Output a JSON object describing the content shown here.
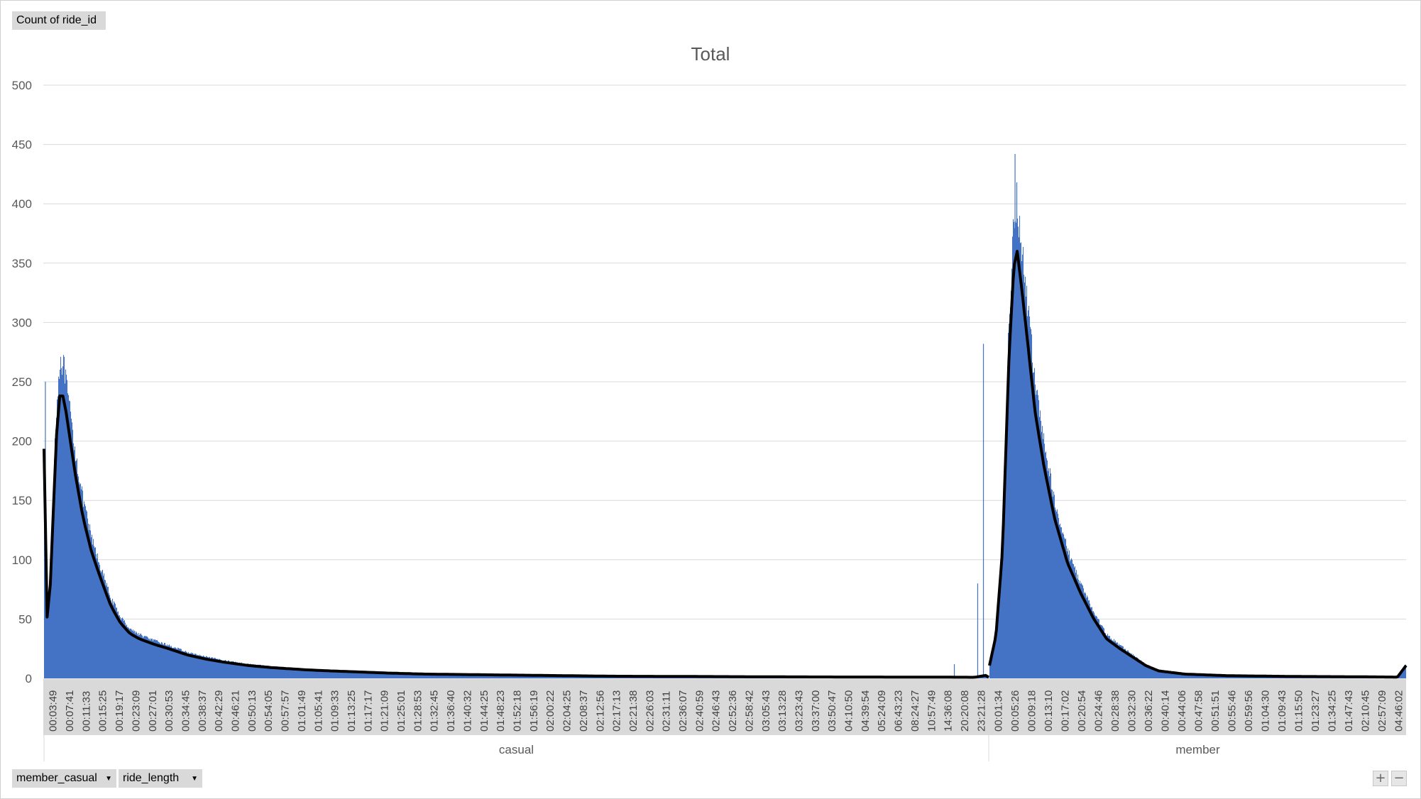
{
  "value_field_button": {
    "label": "Count of ride_id"
  },
  "axis_field_buttons": [
    {
      "label": "member_casual"
    },
    {
      "label": "ride_length"
    }
  ],
  "zoom": {
    "plus": "+",
    "minus": "−"
  },
  "colors": {
    "bars": "#4472c4",
    "trendline": "#000000",
    "grid": "#d9d9d9",
    "axis_band": "#d9d9d9",
    "text": "#595959"
  },
  "chart_data": {
    "type": "bar",
    "title": "Total",
    "xlabel": "",
    "ylabel": "",
    "ylim": [
      0,
      500
    ],
    "yticks": [
      0,
      50,
      100,
      150,
      200,
      250,
      300,
      350,
      400,
      450,
      500
    ],
    "grid": true,
    "legend": "none",
    "trendline": "moving average (black line)",
    "groups": [
      {
        "name": "casual",
        "tick_labels": [
          "00:03:49",
          "00:07:41",
          "00:11:33",
          "00:15:25",
          "00:19:17",
          "00:23:09",
          "00:27:01",
          "00:30:53",
          "00:34:45",
          "00:38:37",
          "00:42:29",
          "00:46:21",
          "00:50:13",
          "00:54:05",
          "00:57:57",
          "01:01:49",
          "01:05:41",
          "01:09:33",
          "01:13:25",
          "01:17:17",
          "01:21:09",
          "01:25:01",
          "01:28:53",
          "01:32:45",
          "01:36:40",
          "01:40:32",
          "01:44:25",
          "01:48:23",
          "01:52:18",
          "01:56:19",
          "02:00:22",
          "02:04:25",
          "02:08:37",
          "02:12:56",
          "02:17:13",
          "02:21:38",
          "02:26:03",
          "02:31:11",
          "02:36:07",
          "02:40:59",
          "02:46:43",
          "02:52:36",
          "02:58:42",
          "03:05:43",
          "03:13:28",
          "03:23:43",
          "03:37:00",
          "03:50:47",
          "04:10:50",
          "04:39:54",
          "05:24:09",
          "06:43:23",
          "08:24:27",
          "10:57:49",
          "14:36:08",
          "20:20:08",
          "23:21:28"
        ],
        "profile": [
          [
            0,
            215
          ],
          [
            0.1,
            140
          ],
          [
            0.4,
            60
          ],
          [
            0.9,
            55
          ],
          [
            1.6,
            110
          ],
          [
            2.4,
            215
          ],
          [
            3.4,
            270
          ],
          [
            4.2,
            262
          ],
          [
            5.2,
            232
          ],
          [
            6.6,
            190
          ],
          [
            8.2,
            150
          ],
          [
            10,
            118
          ],
          [
            12,
            92
          ],
          [
            14,
            68
          ],
          [
            16,
            52
          ],
          [
            18,
            42
          ],
          [
            20,
            37
          ],
          [
            23,
            32
          ],
          [
            26,
            28
          ],
          [
            30,
            22
          ],
          [
            34,
            18
          ],
          [
            38,
            15
          ],
          [
            43,
            12
          ],
          [
            48,
            10
          ],
          [
            55,
            8
          ],
          [
            60,
            7
          ],
          [
            66,
            6
          ],
          [
            72,
            5
          ],
          [
            80,
            4
          ],
          [
            90,
            3.5
          ],
          [
            100,
            3
          ],
          [
            110,
            2.5
          ],
          [
            120,
            2
          ],
          [
            135,
            1.8
          ],
          [
            150,
            1.5
          ],
          [
            165,
            1.3
          ],
          [
            180,
            1.2
          ],
          [
            190,
            1.1
          ],
          [
            195,
            1
          ],
          [
            197.6,
            3
          ],
          [
            198,
            1
          ]
        ],
        "spikes": [
          [
            0.2,
            250
          ],
          [
            190.7,
            12
          ],
          [
            195.6,
            80
          ],
          [
            196.8,
            282
          ]
        ]
      },
      {
        "name": "member",
        "tick_labels": [
          "00:01:34",
          "00:05:26",
          "00:09:18",
          "00:13:10",
          "00:17:02",
          "00:20:54",
          "00:24:46",
          "00:28:38",
          "00:32:30",
          "00:36:22",
          "00:40:14",
          "00:44:06",
          "00:47:58",
          "00:51:51",
          "00:55:46",
          "00:59:56",
          "01:04:30",
          "01:09:43",
          "01:15:50",
          "01:23:27",
          "01:34:25",
          "01:47:43",
          "02:10:45",
          "02:57:09",
          "04:46:02"
        ],
        "profile": [
          [
            0,
            12
          ],
          [
            1.5,
            40
          ],
          [
            3,
            120
          ],
          [
            4.5,
            300
          ],
          [
            5.6,
            385
          ],
          [
            6.4,
            400
          ],
          [
            7.3,
            370
          ],
          [
            8.8,
            315
          ],
          [
            10.5,
            250
          ],
          [
            12.5,
            200
          ],
          [
            15,
            150
          ],
          [
            18,
            108
          ],
          [
            21,
            80
          ],
          [
            24,
            56
          ],
          [
            27,
            37
          ],
          [
            30,
            28
          ],
          [
            33,
            20
          ],
          [
            36,
            12
          ],
          [
            39,
            7
          ],
          [
            45,
            4
          ],
          [
            55,
            2.5
          ],
          [
            70,
            1.8
          ],
          [
            85,
            1.5
          ],
          [
            94,
            1.2
          ],
          [
            96,
            12
          ]
        ],
        "spikes": [
          [
            5.8,
            442
          ],
          [
            6.2,
            418
          ]
        ]
      }
    ]
  }
}
